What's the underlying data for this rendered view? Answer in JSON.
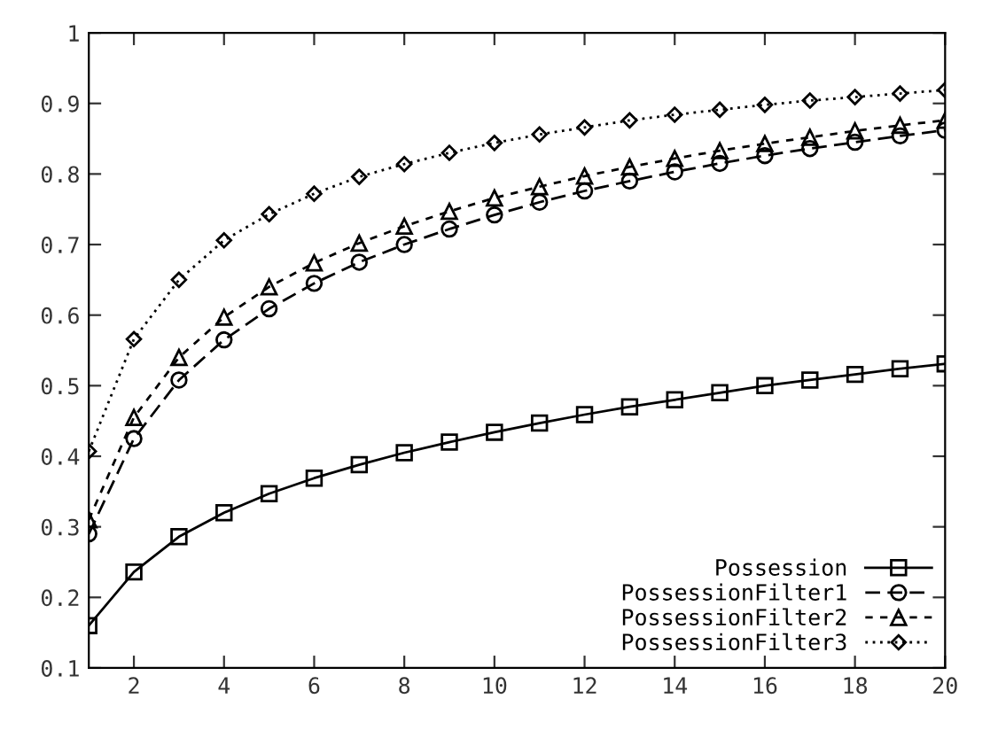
{
  "chart_data": {
    "type": "line",
    "x": [
      1,
      2,
      3,
      4,
      5,
      6,
      7,
      8,
      9,
      10,
      11,
      12,
      13,
      14,
      15,
      16,
      17,
      18,
      19,
      20
    ],
    "xlim": [
      1,
      20
    ],
    "xticks": [
      2,
      4,
      6,
      8,
      10,
      12,
      14,
      16,
      18,
      20
    ],
    "ylim": [
      0.1,
      1
    ],
    "yticks": [
      0.1,
      0.2,
      0.3,
      0.4,
      0.5,
      0.6,
      0.7,
      0.8,
      0.9,
      1
    ],
    "grid": false,
    "legend": "bottom right",
    "series": [
      {
        "name": "Possession",
        "color": "#000000",
        "marker": "square",
        "line_style": "solid",
        "values": [
          0.16,
          0.236,
          0.286,
          0.32,
          0.347,
          0.369,
          0.388,
          0.405,
          0.42,
          0.434,
          0.447,
          0.459,
          0.47,
          0.48,
          0.49,
          0.5,
          0.508,
          0.516,
          0.524,
          0.531
        ]
      },
      {
        "name": "PossessionFilter1",
        "color": "#000000",
        "marker": "circle",
        "line_style": "dashed",
        "values": [
          0.29,
          0.425,
          0.508,
          0.565,
          0.609,
          0.645,
          0.675,
          0.7,
          0.722,
          0.742,
          0.76,
          0.776,
          0.79,
          0.803,
          0.815,
          0.826,
          0.836,
          0.845,
          0.854,
          0.862
        ]
      },
      {
        "name": "PossessionFilter2",
        "color": "#000000",
        "marker": "triangle",
        "line_style": "shortdash",
        "values": [
          0.31,
          0.455,
          0.54,
          0.597,
          0.64,
          0.674,
          0.702,
          0.726,
          0.747,
          0.766,
          0.782,
          0.797,
          0.81,
          0.822,
          0.833,
          0.843,
          0.852,
          0.861,
          0.869,
          0.876
        ]
      },
      {
        "name": "PossessionFilter3",
        "color": "#000000",
        "marker": "diamond",
        "line_style": "dotted",
        "values": [
          0.407,
          0.566,
          0.65,
          0.706,
          0.743,
          0.772,
          0.796,
          0.814,
          0.83,
          0.844,
          0.856,
          0.866,
          0.876,
          0.884,
          0.891,
          0.898,
          0.904,
          0.909,
          0.914,
          0.919
        ]
      }
    ]
  }
}
